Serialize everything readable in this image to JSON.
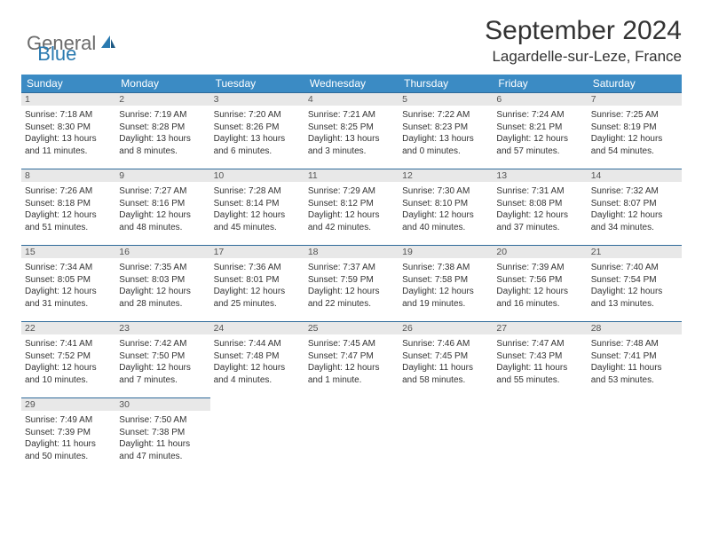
{
  "brand": {
    "general": "General",
    "blue": "Blue"
  },
  "title": {
    "month": "September 2024",
    "location": "Lagardelle-sur-Leze, France"
  },
  "colors": {
    "header_bg": "#3b8bc4",
    "header_text": "#ffffff",
    "daybar_bg": "#e8e8e8",
    "daybar_border": "#2f6a9a",
    "logo_gray": "#6b6b6b",
    "logo_blue": "#2a7ab0"
  },
  "weekdays": [
    "Sunday",
    "Monday",
    "Tuesday",
    "Wednesday",
    "Thursday",
    "Friday",
    "Saturday"
  ],
  "days": {
    "1": {
      "sunrise": "Sunrise: 7:18 AM",
      "sunset": "Sunset: 8:30 PM",
      "daylight": "Daylight: 13 hours and 11 minutes."
    },
    "2": {
      "sunrise": "Sunrise: 7:19 AM",
      "sunset": "Sunset: 8:28 PM",
      "daylight": "Daylight: 13 hours and 8 minutes."
    },
    "3": {
      "sunrise": "Sunrise: 7:20 AM",
      "sunset": "Sunset: 8:26 PM",
      "daylight": "Daylight: 13 hours and 6 minutes."
    },
    "4": {
      "sunrise": "Sunrise: 7:21 AM",
      "sunset": "Sunset: 8:25 PM",
      "daylight": "Daylight: 13 hours and 3 minutes."
    },
    "5": {
      "sunrise": "Sunrise: 7:22 AM",
      "sunset": "Sunset: 8:23 PM",
      "daylight": "Daylight: 13 hours and 0 minutes."
    },
    "6": {
      "sunrise": "Sunrise: 7:24 AM",
      "sunset": "Sunset: 8:21 PM",
      "daylight": "Daylight: 12 hours and 57 minutes."
    },
    "7": {
      "sunrise": "Sunrise: 7:25 AM",
      "sunset": "Sunset: 8:19 PM",
      "daylight": "Daylight: 12 hours and 54 minutes."
    },
    "8": {
      "sunrise": "Sunrise: 7:26 AM",
      "sunset": "Sunset: 8:18 PM",
      "daylight": "Daylight: 12 hours and 51 minutes."
    },
    "9": {
      "sunrise": "Sunrise: 7:27 AM",
      "sunset": "Sunset: 8:16 PM",
      "daylight": "Daylight: 12 hours and 48 minutes."
    },
    "10": {
      "sunrise": "Sunrise: 7:28 AM",
      "sunset": "Sunset: 8:14 PM",
      "daylight": "Daylight: 12 hours and 45 minutes."
    },
    "11": {
      "sunrise": "Sunrise: 7:29 AM",
      "sunset": "Sunset: 8:12 PM",
      "daylight": "Daylight: 12 hours and 42 minutes."
    },
    "12": {
      "sunrise": "Sunrise: 7:30 AM",
      "sunset": "Sunset: 8:10 PM",
      "daylight": "Daylight: 12 hours and 40 minutes."
    },
    "13": {
      "sunrise": "Sunrise: 7:31 AM",
      "sunset": "Sunset: 8:08 PM",
      "daylight": "Daylight: 12 hours and 37 minutes."
    },
    "14": {
      "sunrise": "Sunrise: 7:32 AM",
      "sunset": "Sunset: 8:07 PM",
      "daylight": "Daylight: 12 hours and 34 minutes."
    },
    "15": {
      "sunrise": "Sunrise: 7:34 AM",
      "sunset": "Sunset: 8:05 PM",
      "daylight": "Daylight: 12 hours and 31 minutes."
    },
    "16": {
      "sunrise": "Sunrise: 7:35 AM",
      "sunset": "Sunset: 8:03 PM",
      "daylight": "Daylight: 12 hours and 28 minutes."
    },
    "17": {
      "sunrise": "Sunrise: 7:36 AM",
      "sunset": "Sunset: 8:01 PM",
      "daylight": "Daylight: 12 hours and 25 minutes."
    },
    "18": {
      "sunrise": "Sunrise: 7:37 AM",
      "sunset": "Sunset: 7:59 PM",
      "daylight": "Daylight: 12 hours and 22 minutes."
    },
    "19": {
      "sunrise": "Sunrise: 7:38 AM",
      "sunset": "Sunset: 7:58 PM",
      "daylight": "Daylight: 12 hours and 19 minutes."
    },
    "20": {
      "sunrise": "Sunrise: 7:39 AM",
      "sunset": "Sunset: 7:56 PM",
      "daylight": "Daylight: 12 hours and 16 minutes."
    },
    "21": {
      "sunrise": "Sunrise: 7:40 AM",
      "sunset": "Sunset: 7:54 PM",
      "daylight": "Daylight: 12 hours and 13 minutes."
    },
    "22": {
      "sunrise": "Sunrise: 7:41 AM",
      "sunset": "Sunset: 7:52 PM",
      "daylight": "Daylight: 12 hours and 10 minutes."
    },
    "23": {
      "sunrise": "Sunrise: 7:42 AM",
      "sunset": "Sunset: 7:50 PM",
      "daylight": "Daylight: 12 hours and 7 minutes."
    },
    "24": {
      "sunrise": "Sunrise: 7:44 AM",
      "sunset": "Sunset: 7:48 PM",
      "daylight": "Daylight: 12 hours and 4 minutes."
    },
    "25": {
      "sunrise": "Sunrise: 7:45 AM",
      "sunset": "Sunset: 7:47 PM",
      "daylight": "Daylight: 12 hours and 1 minute."
    },
    "26": {
      "sunrise": "Sunrise: 7:46 AM",
      "sunset": "Sunset: 7:45 PM",
      "daylight": "Daylight: 11 hours and 58 minutes."
    },
    "27": {
      "sunrise": "Sunrise: 7:47 AM",
      "sunset": "Sunset: 7:43 PM",
      "daylight": "Daylight: 11 hours and 55 minutes."
    },
    "28": {
      "sunrise": "Sunrise: 7:48 AM",
      "sunset": "Sunset: 7:41 PM",
      "daylight": "Daylight: 11 hours and 53 minutes."
    },
    "29": {
      "sunrise": "Sunrise: 7:49 AM",
      "sunset": "Sunset: 7:39 PM",
      "daylight": "Daylight: 11 hours and 50 minutes."
    },
    "30": {
      "sunrise": "Sunrise: 7:50 AM",
      "sunset": "Sunset: 7:38 PM",
      "daylight": "Daylight: 11 hours and 47 minutes."
    }
  },
  "grid": [
    [
      "1",
      "2",
      "3",
      "4",
      "5",
      "6",
      "7"
    ],
    [
      "8",
      "9",
      "10",
      "11",
      "12",
      "13",
      "14"
    ],
    [
      "15",
      "16",
      "17",
      "18",
      "19",
      "20",
      "21"
    ],
    [
      "22",
      "23",
      "24",
      "25",
      "26",
      "27",
      "28"
    ],
    [
      "29",
      "30",
      "",
      "",
      "",
      "",
      ""
    ]
  ]
}
